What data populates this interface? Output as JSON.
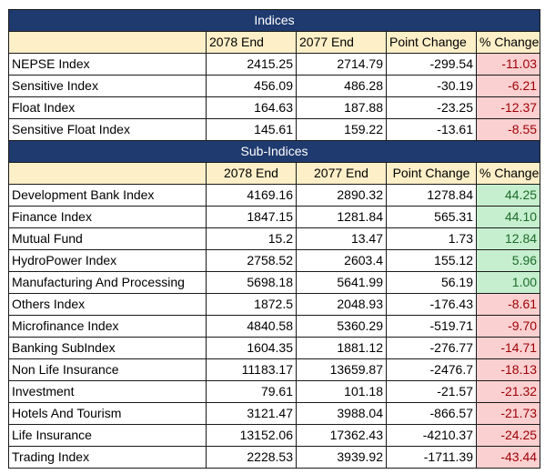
{
  "colors": {
    "title_bg": "#1f3a6e",
    "header_bg": "#fdefc8",
    "negative_bg": "#fbd0d0",
    "negative_text": "#9c0006",
    "positive_bg": "#c6efcf",
    "positive_text": "#1d6b2a"
  },
  "indices": {
    "title": "Indices",
    "headers": [
      "",
      "2078 End",
      "2077 End",
      "Point Change",
      "% Change"
    ],
    "rows": [
      {
        "name": "NEPSE Index",
        "end_2078": "2415.25",
        "end_2077": "2714.79",
        "point_change": "-299.54",
        "pct_change": "-11.03",
        "trend": "negative"
      },
      {
        "name": "Sensitive Index",
        "end_2078": "456.09",
        "end_2077": "486.28",
        "point_change": "-30.19",
        "pct_change": "-6.21",
        "trend": "negative"
      },
      {
        "name": "Float Index",
        "end_2078": "164.63",
        "end_2077": "187.88",
        "point_change": "-23.25",
        "pct_change": "-12.37",
        "trend": "negative"
      },
      {
        "name": "Sensitive Float Index",
        "end_2078": "145.61",
        "end_2077": "159.22",
        "point_change": "-13.61",
        "pct_change": "-8.55",
        "trend": "negative"
      }
    ]
  },
  "sub_indices": {
    "title": "Sub-Indices",
    "headers": [
      "",
      "2078 End",
      "2077 End",
      "Point Change",
      "% Change"
    ],
    "rows": [
      {
        "name": "Development Bank Index",
        "end_2078": "4169.16",
        "end_2077": "2890.32",
        "point_change": "1278.84",
        "pct_change": "44.25",
        "trend": "positive"
      },
      {
        "name": "Finance Index",
        "end_2078": "1847.15",
        "end_2077": "1281.84",
        "point_change": "565.31",
        "pct_change": "44.10",
        "trend": "positive"
      },
      {
        "name": "Mutual Fund",
        "end_2078": "15.2",
        "end_2077": "13.47",
        "point_change": "1.73",
        "pct_change": "12.84",
        "trend": "positive"
      },
      {
        "name": "HydroPower Index",
        "end_2078": "2758.52",
        "end_2077": "2603.4",
        "point_change": "155.12",
        "pct_change": "5.96",
        "trend": "positive"
      },
      {
        "name": "Manufacturing And Processing",
        "end_2078": "5698.18",
        "end_2077": "5641.99",
        "point_change": "56.19",
        "pct_change": "1.00",
        "trend": "positive"
      },
      {
        "name": "Others Index",
        "end_2078": "1872.5",
        "end_2077": "2048.93",
        "point_change": "-176.43",
        "pct_change": "-8.61",
        "trend": "negative"
      },
      {
        "name": "Microfinance Index",
        "end_2078": "4840.58",
        "end_2077": "5360.29",
        "point_change": "-519.71",
        "pct_change": "-9.70",
        "trend": "negative"
      },
      {
        "name": "Banking SubIndex",
        "end_2078": "1604.35",
        "end_2077": "1881.12",
        "point_change": "-276.77",
        "pct_change": "-14.71",
        "trend": "negative"
      },
      {
        "name": "Non Life Insurance",
        "end_2078": "11183.17",
        "end_2077": "13659.87",
        "point_change": "-2476.7",
        "pct_change": "-18.13",
        "trend": "negative"
      },
      {
        "name": "Investment",
        "end_2078": "79.61",
        "end_2077": "101.18",
        "point_change": "-21.57",
        "pct_change": "-21.32",
        "trend": "negative"
      },
      {
        "name": "Hotels And Tourism",
        "end_2078": "3121.47",
        "end_2077": "3988.04",
        "point_change": "-866.57",
        "pct_change": "-21.73",
        "trend": "negative"
      },
      {
        "name": "Life Insurance",
        "end_2078": "13152.06",
        "end_2077": "17362.43",
        "point_change": "-4210.37",
        "pct_change": "-24.25",
        "trend": "negative"
      },
      {
        "name": "Trading Index",
        "end_2078": "2228.53",
        "end_2077": "3939.92",
        "point_change": "-1711.39",
        "pct_change": "-43.44",
        "trend": "negative"
      }
    ]
  }
}
